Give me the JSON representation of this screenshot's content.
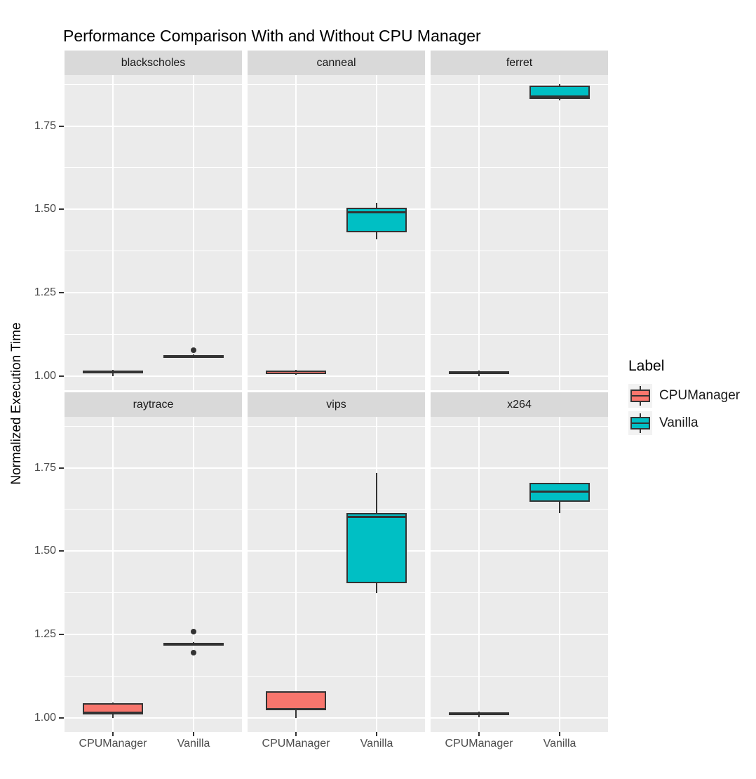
{
  "title": "Performance Comparison With and Without CPU Manager",
  "y_axis_title": "Normalized Execution Time",
  "legend": {
    "title": "Label",
    "items": [
      {
        "label": "CPUManager",
        "color": "#F8766D"
      },
      {
        "label": "Vanilla",
        "color": "#00BFC4"
      }
    ]
  },
  "axis": {
    "y_tick_labels": [
      "1.00",
      "1.25",
      "1.50",
      "1.75"
    ],
    "x_tick_labels": [
      "CPUManager",
      "Vanilla"
    ]
  },
  "colors": {
    "cpumanager_fill": "#F8766D",
    "vanilla_fill": "#00BFC4",
    "box_border": "#333333",
    "panel_background": "#EBEBEB",
    "strip_background": "#D9D9D9",
    "gridline": "#FFFFFF",
    "axis_text": "#4D4D4D",
    "legend_key_background": "#F2F2F2"
  },
  "chart_data": {
    "type": "boxplot",
    "title": "Performance Comparison With and Without CPU Manager",
    "xlabel": "",
    "ylabel": "Normalized Execution Time",
    "x_categories": [
      "CPUManager",
      "Vanilla"
    ],
    "y_ticks": [
      1.0,
      1.25,
      1.5,
      1.75
    ],
    "y_minor_ticks": [
      1.125,
      1.375,
      1.625,
      1.875
    ],
    "ylim": [
      0.957,
      1.903
    ],
    "grid": true,
    "legend_position": "right",
    "legend_title": "Label",
    "series": [
      {
        "name": "CPUManager",
        "color": "#F8766D"
      },
      {
        "name": "Vanilla",
        "color": "#00BFC4"
      }
    ],
    "facet_layout": [
      [
        "blackscholes",
        "canneal",
        "ferret"
      ],
      [
        "raytrace",
        "vips",
        "x264"
      ]
    ],
    "facets": [
      {
        "name": "blackscholes",
        "row": 0,
        "col": 0,
        "boxes": [
          {
            "category": "CPUManager",
            "min": 1.0,
            "q1": 1.007,
            "median": 1.012,
            "q3": 1.017,
            "max": 1.018,
            "outliers": []
          },
          {
            "category": "Vanilla",
            "min": 1.056,
            "q1": 1.058,
            "median": 1.06,
            "q3": 1.062,
            "max": 1.064,
            "outliers": [
              1.078
            ]
          }
        ]
      },
      {
        "name": "canneal",
        "row": 0,
        "col": 1,
        "boxes": [
          {
            "category": "CPUManager",
            "min": 1.004,
            "q1": 1.006,
            "median": 1.011,
            "q3": 1.016,
            "max": 1.018,
            "outliers": []
          },
          {
            "category": "Vanilla",
            "min": 1.409,
            "q1": 1.43,
            "median": 1.491,
            "q3": 1.504,
            "max": 1.519,
            "outliers": []
          }
        ]
      },
      {
        "name": "ferret",
        "row": 0,
        "col": 2,
        "boxes": [
          {
            "category": "CPUManager",
            "min": 1.0,
            "q1": 1.006,
            "median": 1.01,
            "q3": 1.014,
            "max": 1.016,
            "outliers": []
          },
          {
            "category": "Vanilla",
            "min": 1.828,
            "q1": 1.832,
            "median": 1.838,
            "q3": 1.872,
            "max": 1.876,
            "outliers": []
          }
        ]
      },
      {
        "name": "raytrace",
        "row": 1,
        "col": 0,
        "boxes": [
          {
            "category": "CPUManager",
            "min": 1.0,
            "q1": 1.01,
            "median": 1.014,
            "q3": 1.043,
            "max": 1.045,
            "outliers": []
          },
          {
            "category": "Vanilla",
            "min": 1.219,
            "q1": 1.221,
            "median": 1.223,
            "q3": 1.225,
            "max": 1.227,
            "outliers": [
              1.259,
              1.196
            ]
          }
        ]
      },
      {
        "name": "vips",
        "row": 1,
        "col": 1,
        "boxes": [
          {
            "category": "CPUManager",
            "min": 1.0,
            "q1": 1.022,
            "median": 1.026,
            "q3": 1.08,
            "max": 1.08,
            "outliers": []
          },
          {
            "category": "Vanilla",
            "min": 1.375,
            "q1": 1.403,
            "median": 1.603,
            "q3": 1.614,
            "max": 1.734,
            "outliers": []
          }
        ]
      },
      {
        "name": "x264",
        "row": 1,
        "col": 2,
        "boxes": [
          {
            "category": "CPUManager",
            "min": 1.002,
            "q1": 1.008,
            "median": 1.012,
            "q3": 1.016,
            "max": 1.018,
            "outliers": []
          },
          {
            "category": "Vanilla",
            "min": 1.615,
            "q1": 1.648,
            "median": 1.678,
            "q3": 1.705,
            "max": 1.705,
            "outliers": []
          }
        ]
      }
    ]
  }
}
